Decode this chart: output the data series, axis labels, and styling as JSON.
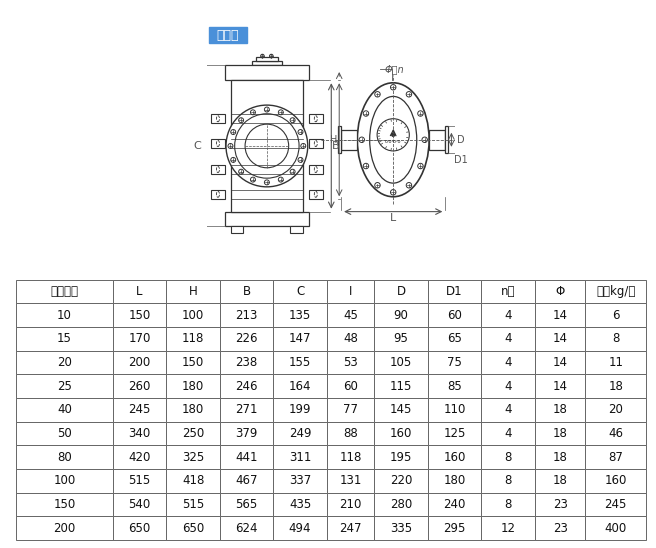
{
  "title": "铸铁型",
  "title_bg": "#4a90d9",
  "title_color": "#ffffff",
  "columns": [
    "公称通径",
    "L",
    "H",
    "B",
    "C",
    "I",
    "D",
    "D1",
    "n个",
    "Φ",
    "重量kg/台"
  ],
  "rows": [
    [
      "10",
      "150",
      "100",
      "213",
      "135",
      "45",
      "90",
      "60",
      "4",
      "14",
      "6"
    ],
    [
      "15",
      "170",
      "118",
      "226",
      "147",
      "48",
      "95",
      "65",
      "4",
      "14",
      "8"
    ],
    [
      "20",
      "200",
      "150",
      "238",
      "155",
      "53",
      "105",
      "75",
      "4",
      "14",
      "11"
    ],
    [
      "25",
      "260",
      "180",
      "246",
      "164",
      "60",
      "115",
      "85",
      "4",
      "14",
      "18"
    ],
    [
      "40",
      "245",
      "180",
      "271",
      "199",
      "77",
      "145",
      "110",
      "4",
      "18",
      "20"
    ],
    [
      "50",
      "340",
      "250",
      "379",
      "249",
      "88",
      "160",
      "125",
      "4",
      "18",
      "46"
    ],
    [
      "80",
      "420",
      "325",
      "441",
      "311",
      "118",
      "195",
      "160",
      "8",
      "18",
      "87"
    ],
    [
      "100",
      "515",
      "418",
      "467",
      "337",
      "131",
      "220",
      "180",
      "8",
      "18",
      "160"
    ],
    [
      "150",
      "540",
      "515",
      "565",
      "435",
      "210",
      "280",
      "240",
      "8",
      "23",
      "245"
    ],
    [
      "200",
      "650",
      "650",
      "624",
      "494",
      "247",
      "335",
      "295",
      "12",
      "23",
      "400"
    ]
  ],
  "border_color": "#666666",
  "fig_bg": "#ffffff",
  "lc": "#333333",
  "dim_lc": "#555555"
}
